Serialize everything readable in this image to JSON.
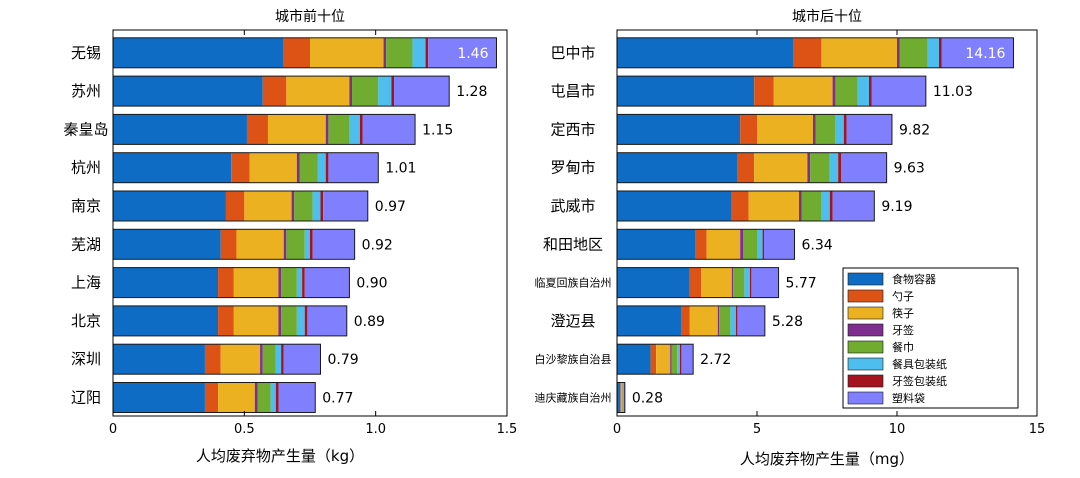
{
  "components": [
    {
      "name": "食物容器",
      "color": "#0e6cc4"
    },
    {
      "name": "勺子",
      "color": "#dd5316"
    },
    {
      "name": "筷子",
      "color": "#ecb120"
    },
    {
      "name": "牙签",
      "color": "#7e2f8e"
    },
    {
      "name": "餐巾",
      "color": "#6fac2f"
    },
    {
      "name": "餐具包装纸",
      "color": "#4dbeee"
    },
    {
      "name": "牙签包装纸",
      "color": "#a3141f"
    },
    {
      "name": "塑料袋",
      "color": "#8080ff"
    }
  ],
  "chart_data": [
    {
      "type": "bar",
      "orientation": "horizontal",
      "stacked": true,
      "title": "城市前十位",
      "xlabel": "人均废弃物产生量（kg）",
      "xlim": [
        0,
        1.5
      ],
      "xticks": [
        0,
        0.5,
        1,
        1.5
      ],
      "xtick_labels": [
        "0",
        "0.5",
        "1.0",
        "1.5"
      ],
      "categories": [
        "无锡",
        "苏州",
        "秦皇岛",
        "杭州",
        "南京",
        "芜湖",
        "上海",
        "北京",
        "深圳",
        "辽阳"
      ],
      "totals": [
        1.46,
        1.28,
        1.15,
        1.01,
        0.97,
        0.92,
        0.9,
        0.89,
        0.79,
        0.77
      ],
      "total_labels": [
        "1.46",
        "1.28",
        "1.15",
        "1.01",
        "0.97",
        "0.92",
        "0.90",
        "0.89",
        "0.79",
        "0.77"
      ],
      "series": [
        {
          "name": "食物容器",
          "values": [
            0.65,
            0.57,
            0.51,
            0.45,
            0.43,
            0.41,
            0.4,
            0.4,
            0.35,
            0.35
          ]
        },
        {
          "name": "勺子",
          "values": [
            0.1,
            0.09,
            0.08,
            0.07,
            0.07,
            0.06,
            0.06,
            0.06,
            0.06,
            0.05
          ]
        },
        {
          "name": "筷子",
          "values": [
            0.28,
            0.24,
            0.22,
            0.18,
            0.18,
            0.18,
            0.17,
            0.17,
            0.15,
            0.14
          ]
        },
        {
          "name": "牙签",
          "values": [
            0.01,
            0.01,
            0.01,
            0.01,
            0.01,
            0.01,
            0.01,
            0.01,
            0.01,
            0.01
          ]
        },
        {
          "name": "餐巾",
          "values": [
            0.1,
            0.1,
            0.08,
            0.07,
            0.07,
            0.07,
            0.06,
            0.06,
            0.05,
            0.05
          ]
        },
        {
          "name": "餐具包装纸",
          "values": [
            0.05,
            0.05,
            0.04,
            0.03,
            0.03,
            0.02,
            0.02,
            0.03,
            0.02,
            0.02
          ]
        },
        {
          "name": "牙签包装纸",
          "values": [
            0.01,
            0.01,
            0.01,
            0.01,
            0.01,
            0.01,
            0.01,
            0.01,
            0.01,
            0.01
          ]
        },
        {
          "name": "塑料袋",
          "values": [
            0.26,
            0.21,
            0.2,
            0.19,
            0.17,
            0.16,
            0.17,
            0.15,
            0.14,
            0.14
          ]
        }
      ]
    },
    {
      "type": "bar",
      "orientation": "horizontal",
      "stacked": true,
      "title": "城市后十位",
      "xlabel": "人均废弃物产生量（mg）",
      "xlim": [
        0,
        15
      ],
      "xticks": [
        0,
        5,
        10,
        15
      ],
      "xtick_labels": [
        "0",
        "5",
        "10",
        "15"
      ],
      "categories": [
        "巴中市",
        "屯昌市",
        "定西市",
        "罗甸市",
        "武威市",
        "和田地区",
        "临夏回族自治州",
        "澄迈县",
        "白沙黎族自治县",
        "迪庆藏族自治州"
      ],
      "totals": [
        14.16,
        11.03,
        9.82,
        9.63,
        9.19,
        6.34,
        5.77,
        5.28,
        2.72,
        0.28
      ],
      "total_labels": [
        "14.16",
        "11.03",
        "9.82",
        "9.63",
        "9.19",
        "6.34",
        "5.77",
        "5.28",
        "2.72",
        "0.28"
      ],
      "series": [
        {
          "name": "食物容器",
          "values": [
            6.3,
            4.9,
            4.4,
            4.3,
            4.1,
            2.8,
            2.6,
            2.3,
            1.2,
            0.12
          ]
        },
        {
          "name": "勺子",
          "values": [
            1.0,
            0.7,
            0.6,
            0.6,
            0.6,
            0.4,
            0.4,
            0.3,
            0.2,
            0.02
          ]
        },
        {
          "name": "筷子",
          "values": [
            2.7,
            2.1,
            2.0,
            1.9,
            1.8,
            1.2,
            1.1,
            1.0,
            0.5,
            0.05
          ]
        },
        {
          "name": "牙签",
          "values": [
            0.1,
            0.1,
            0.1,
            0.1,
            0.1,
            0.1,
            0.05,
            0.05,
            0.05,
            0.01
          ]
        },
        {
          "name": "餐巾",
          "values": [
            1.0,
            0.8,
            0.7,
            0.7,
            0.7,
            0.5,
            0.4,
            0.4,
            0.2,
            0.02
          ]
        },
        {
          "name": "餐具包装纸",
          "values": [
            0.4,
            0.4,
            0.3,
            0.3,
            0.3,
            0.2,
            0.2,
            0.2,
            0.1,
            0.01
          ]
        },
        {
          "name": "牙签包装纸",
          "values": [
            0.1,
            0.1,
            0.1,
            0.1,
            0.1,
            0.05,
            0.05,
            0.05,
            0.05,
            0.01
          ]
        },
        {
          "name": "塑料袋",
          "values": [
            2.56,
            1.93,
            1.62,
            1.63,
            1.49,
            1.09,
            0.97,
            0.98,
            0.42,
            0.04
          ]
        }
      ]
    }
  ]
}
